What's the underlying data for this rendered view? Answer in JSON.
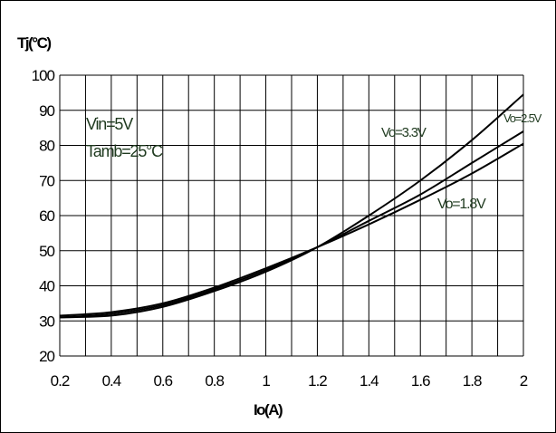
{
  "chart_data": {
    "type": "line",
    "title": "",
    "xlabel": "Io(A)",
    "ylabel": "Tj(°C)",
    "xlim": [
      0.2,
      2
    ],
    "ylim": [
      20,
      100
    ],
    "x_ticks": [
      "0.2",
      "0.4",
      "0.6",
      "0.8",
      "1",
      "1.2",
      "1.4",
      "1.6",
      "1.8",
      "2"
    ],
    "y_ticks": [
      "20",
      "30",
      "40",
      "50",
      "60",
      "70",
      "80",
      "90",
      "100"
    ],
    "grid": true,
    "x_grid_step": 0.1,
    "y_grid_step": 10,
    "annotations": [
      "Vin=5V",
      "Tamb=25°C"
    ],
    "series": [
      {
        "name": "Vo=3.3V",
        "x": [
          0.2,
          0.4,
          0.6,
          0.8,
          1.0,
          1.2,
          1.4,
          1.6,
          1.8,
          2.0
        ],
        "y": [
          31,
          31.5,
          34,
          38.5,
          44,
          51,
          60,
          70,
          81.5,
          94.5
        ]
      },
      {
        "name": "Vo=2.5V",
        "x": [
          0.2,
          0.4,
          0.6,
          0.8,
          1.0,
          1.2,
          1.4,
          1.6,
          1.8,
          2.0
        ],
        "y": [
          31,
          32,
          34.5,
          39,
          44.5,
          51,
          58.5,
          66,
          75,
          84
        ]
      },
      {
        "name": "Vo=1.8V",
        "x": [
          0.2,
          0.4,
          0.6,
          0.8,
          1.0,
          1.2,
          1.4,
          1.6,
          1.8,
          2.0
        ],
        "y": [
          31.5,
          32.5,
          35,
          39.5,
          45,
          51,
          57.5,
          64.5,
          72,
          80.5
        ]
      }
    ]
  }
}
